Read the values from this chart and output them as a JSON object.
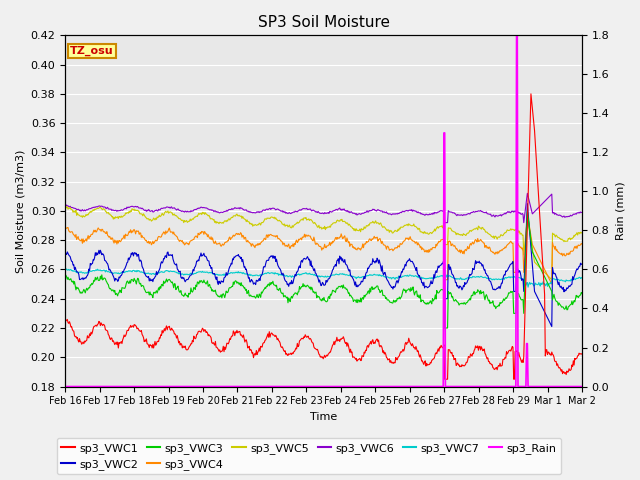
{
  "title": "SP3 Soil Moisture",
  "xlabel": "Time",
  "ylabel_left": "Soil Moisture (m3/m3)",
  "ylabel_right": "Rain (mm)",
  "ylim_left": [
    0.18,
    0.42
  ],
  "ylim_right": [
    0.0,
    1.8
  ],
  "fig_bg": "#f0f0f0",
  "plot_bg": "#e8e8e8",
  "tz_label": "TZ_osu",
  "tz_bg": "#ffff99",
  "tz_border": "#cc8800",
  "series_colors": {
    "sp3_VWC1": "#ff0000",
    "sp3_VWC2": "#0000cc",
    "sp3_VWC3": "#00cc00",
    "sp3_VWC4": "#ff8800",
    "sp3_VWC5": "#cccc00",
    "sp3_VWC6": "#8800cc",
    "sp3_VWC7": "#00cccc",
    "sp3_Rain": "#ff00ff"
  },
  "x_tick_labels": [
    "Feb 16",
    "Feb 17",
    "Feb 18",
    "Feb 19",
    "Feb 20",
    "Feb 21",
    "Feb 22",
    "Feb 23",
    "Feb 24",
    "Feb 25",
    "Feb 26",
    "Feb 27",
    "Feb 28",
    "Feb 29",
    "Mar 1",
    "Mar 2"
  ],
  "yticks_left": [
    0.18,
    0.2,
    0.22,
    0.24,
    0.26,
    0.28,
    0.3,
    0.32,
    0.34,
    0.36,
    0.38,
    0.4,
    0.42
  ],
  "yticks_right": [
    0.0,
    0.2,
    0.4,
    0.6,
    0.8,
    1.0,
    1.2,
    1.4,
    1.6,
    1.8
  ]
}
